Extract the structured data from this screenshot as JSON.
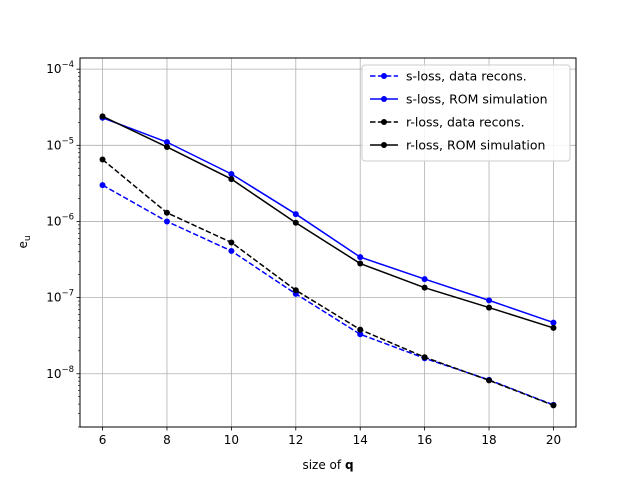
{
  "chart_data": {
    "type": "line",
    "title": "",
    "xlabel": {
      "prefix": "size of ",
      "bold": "q"
    },
    "ylabel": {
      "base": "e",
      "sub": "u"
    },
    "x": [
      6,
      8,
      10,
      12,
      14,
      16,
      18,
      20
    ],
    "xlim": [
      5.3,
      20.7
    ],
    "ylim": [
      2e-09,
      0.00014
    ],
    "yscale": "log",
    "xticks": [
      6,
      8,
      10,
      12,
      14,
      16,
      18,
      20
    ],
    "yticks": [
      {
        "value": 1e-08,
        "mantissa": "10",
        "exp": "−8"
      },
      {
        "value": 1e-07,
        "mantissa": "10",
        "exp": "−7"
      },
      {
        "value": 1e-06,
        "mantissa": "10",
        "exp": "−6"
      },
      {
        "value": 1e-05,
        "mantissa": "10",
        "exp": "−5"
      },
      {
        "value": 0.0001,
        "mantissa": "10",
        "exp": "−4"
      }
    ],
    "grid": true,
    "legend_position": "top-right",
    "series": [
      {
        "name": "s-loss, data recons.",
        "color": "#0000ff",
        "dash": "dashed",
        "values": [
          3e-06,
          1e-06,
          4.1e-07,
          1.12e-07,
          3.3e-08,
          1.6e-08,
          8.3e-09,
          3.9e-09
        ]
      },
      {
        "name": "s-loss, ROM simulation",
        "color": "#0000ff",
        "dash": "solid",
        "values": [
          2.3e-05,
          1.1e-05,
          4.2e-06,
          1.25e-06,
          3.4e-07,
          1.75e-07,
          9.2e-08,
          4.7e-08
        ]
      },
      {
        "name": "r-loss, data recons.",
        "color": "#000000",
        "dash": "dashed",
        "values": [
          6.5e-06,
          1.3e-06,
          5.3e-07,
          1.25e-07,
          3.8e-08,
          1.65e-08,
          8.2e-09,
          3.85e-09
        ]
      },
      {
        "name": "r-loss, ROM simulation",
        "color": "#000000",
        "dash": "solid",
        "values": [
          2.4e-05,
          9.5e-06,
          3.6e-06,
          9.6e-07,
          2.8e-07,
          1.35e-07,
          7.4e-08,
          4e-08
        ]
      }
    ]
  }
}
